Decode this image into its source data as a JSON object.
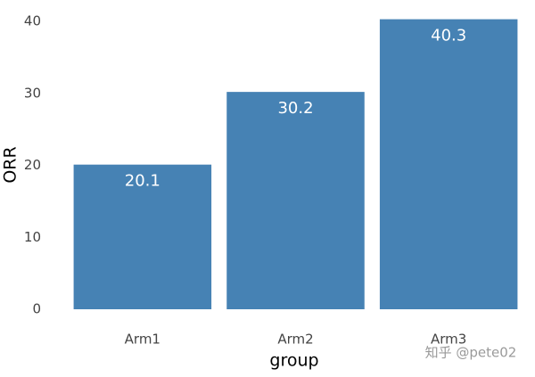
{
  "chart_data": {
    "type": "bar",
    "x_label": "group",
    "y_label": "ORR",
    "categories": [
      "Arm1",
      "Arm2",
      "Arm3"
    ],
    "values": [
      20.1,
      30.2,
      40.3
    ],
    "color": "#4682b4",
    "ylim": [
      0,
      40
    ],
    "yticks": [
      0,
      10,
      20,
      30,
      40
    ],
    "grid": false,
    "watermark": "知乎 @pete02"
  }
}
